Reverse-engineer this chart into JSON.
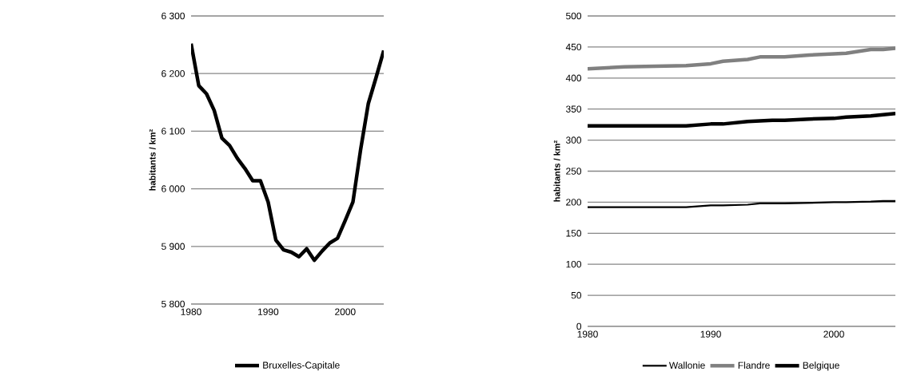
{
  "chart_data": [
    {
      "type": "line",
      "ylabel": "habitants / km²",
      "x": [
        1980,
        1981,
        1982,
        1983,
        1984,
        1985,
        1986,
        1987,
        1988,
        1989,
        1990,
        1991,
        1992,
        1993,
        1994,
        1995,
        1996,
        1997,
        1998,
        1999,
        2000,
        2001,
        2002,
        2003,
        2004,
        2005
      ],
      "series": [
        {
          "name": "Bruxelles-Capitale",
          "color": "#000000",
          "values": [
            6252,
            6179,
            6165,
            6136,
            6088,
            6075,
            6053,
            6035,
            6014,
            6014,
            5977,
            5911,
            5894,
            5890,
            5882,
            5896,
            5876,
            5892,
            5906,
            5914,
            5945,
            5977,
            6068,
            6148,
            6193,
            6240
          ]
        }
      ],
      "xlim": [
        1980,
        2005
      ],
      "xticks": [
        1980,
        1990,
        2000
      ],
      "ylim": [
        5800,
        6300
      ],
      "yticks": [
        {
          "value": 5800,
          "label": "5 800"
        },
        {
          "value": 5900,
          "label": "5 900"
        },
        {
          "value": 6000,
          "label": "6 000"
        },
        {
          "value": 6100,
          "label": "6 100"
        },
        {
          "value": 6200,
          "label": "6 200"
        },
        {
          "value": 6300,
          "label": "6 300"
        }
      ],
      "grid": "y",
      "legend": "bottom",
      "marker": "none",
      "line_style": "solid"
    },
    {
      "type": "line",
      "ylabel": "habitants / km²",
      "x": [
        1980,
        1983,
        1988,
        1990,
        1991,
        1993,
        1994,
        1995,
        1996,
        1998,
        2000,
        2001,
        2003,
        2004,
        2005
      ],
      "series": [
        {
          "name": "Wallonie",
          "color": "#000000",
          "values": [
            192,
            192,
            192,
            195,
            195,
            196,
            198,
            198,
            198,
            199,
            200,
            200,
            201,
            202,
            202
          ]
        },
        {
          "name": "Flandre",
          "color": "#808080",
          "values": [
            415,
            418,
            420,
            423,
            427,
            430,
            434,
            434,
            434,
            437,
            439,
            440,
            446,
            446,
            448
          ]
        },
        {
          "name": "Belgique",
          "color": "#000000",
          "values": [
            323,
            323,
            323,
            326,
            326,
            330,
            331,
            332,
            332,
            334,
            335,
            337,
            339,
            341,
            343
          ]
        }
      ],
      "xlim": [
        1980,
        2005
      ],
      "xticks": [
        1980,
        1990,
        2000
      ],
      "ylim": [
        0,
        500
      ],
      "yticks": [
        0,
        50,
        100,
        150,
        200,
        250,
        300,
        350,
        400,
        450,
        500
      ],
      "grid": "y",
      "legend": "bottom",
      "marker": "none",
      "line_style": "solid"
    }
  ]
}
